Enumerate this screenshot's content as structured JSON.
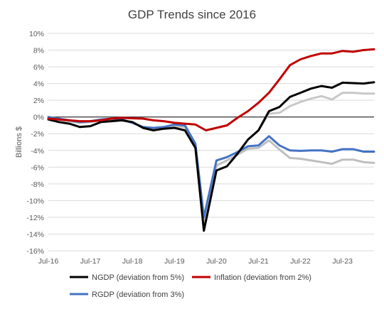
{
  "chart_data": {
    "type": "line",
    "title": "GDP Trends since 2016",
    "ylabel": "Billions $",
    "xlabel": "",
    "ylim": [
      -16,
      10
    ],
    "yticks": [
      -16,
      -14,
      -12,
      -10,
      -8,
      -6,
      -4,
      -2,
      0,
      2,
      4,
      6,
      8,
      10
    ],
    "ytick_labels": [
      "-16%",
      "-14%",
      "-12%",
      "-10%",
      "-8%",
      "-6%",
      "-4%",
      "-2%",
      "0%",
      "2%",
      "4%",
      "6%",
      "8%",
      "10%"
    ],
    "xlim": [
      0,
      31
    ],
    "xticks": [
      0,
      4,
      8,
      12,
      16,
      20,
      24,
      28
    ],
    "xtick_labels": [
      "Jul-16",
      "Jul-17",
      "Jul-18",
      "Jul-19",
      "Jul-20",
      "Jul-21",
      "Jul-22",
      "Jul-23"
    ],
    "grid": "horizontal",
    "legend": "bottom",
    "series": [
      {
        "name": "NGDP (deviation from 5%)",
        "color": "#000000",
        "values": [
          [
            0,
            -0.3
          ],
          [
            1,
            -0.6
          ],
          [
            2,
            -0.8
          ],
          [
            3,
            -1.2
          ],
          [
            4,
            -1.1
          ],
          [
            5,
            -0.6
          ],
          [
            6,
            -0.5
          ],
          [
            7,
            -0.4
          ],
          [
            8,
            -0.6
          ],
          [
            9,
            -1.3
          ],
          [
            10,
            -1.6
          ],
          [
            11,
            -1.4
          ],
          [
            12,
            -1.3
          ],
          [
            13,
            -1.6
          ],
          [
            14,
            -3.7
          ],
          [
            14.8,
            -13.6
          ],
          [
            16,
            -6.4
          ],
          [
            17,
            -5.9
          ],
          [
            18,
            -4.4
          ],
          [
            19,
            -2.7
          ],
          [
            20,
            -1.6
          ],
          [
            21,
            0.7
          ],
          [
            22,
            1.2
          ],
          [
            23,
            2.4
          ],
          [
            24,
            2.9
          ],
          [
            25,
            3.4
          ],
          [
            26,
            3.7
          ],
          [
            27,
            3.5
          ],
          [
            28,
            4.1
          ],
          [
            29,
            4.05
          ],
          [
            30,
            4.0
          ],
          [
            31,
            4.15
          ]
        ]
      },
      {
        "name": "Inflation (deviation from 2%)",
        "color": "#c00000",
        "values": [
          [
            0,
            -0.2
          ],
          [
            1,
            -0.3
          ],
          [
            2,
            -0.4
          ],
          [
            3,
            -0.5
          ],
          [
            4,
            -0.5
          ],
          [
            5,
            -0.4
          ],
          [
            6,
            -0.2
          ],
          [
            7,
            -0.1
          ],
          [
            8,
            -0.15
          ],
          [
            9,
            -0.2
          ],
          [
            10,
            -0.4
          ],
          [
            11,
            -0.5
          ],
          [
            12,
            -0.7
          ],
          [
            13,
            -0.8
          ],
          [
            14,
            -0.9
          ],
          [
            15,
            -1.6
          ],
          [
            16,
            -1.3
          ],
          [
            17,
            -1.0
          ],
          [
            18,
            -0.1
          ],
          [
            19,
            0.7
          ],
          [
            20,
            1.7
          ],
          [
            21,
            2.9
          ],
          [
            22,
            4.5
          ],
          [
            23,
            6.2
          ],
          [
            24,
            6.9
          ],
          [
            25,
            7.3
          ],
          [
            26,
            7.6
          ],
          [
            27,
            7.6
          ],
          [
            28,
            7.9
          ],
          [
            29,
            7.8
          ],
          [
            30,
            8.0
          ],
          [
            31,
            8.1
          ]
        ]
      },
      {
        "name": "RGDP (deviation from 3%)",
        "color": "#4472c4",
        "values": [
          [
            0,
            0.0
          ],
          [
            1,
            -0.2
          ],
          [
            2,
            -0.4
          ],
          [
            3,
            -0.6
          ],
          [
            4,
            -0.5
          ],
          [
            5,
            -0.3
          ],
          [
            6,
            -0.2
          ],
          [
            7,
            -0.3
          ],
          [
            8,
            -0.7
          ],
          [
            9,
            -1.2
          ],
          [
            10,
            -1.3
          ],
          [
            11,
            -1.2
          ],
          [
            12,
            -0.9
          ],
          [
            13,
            -1.0
          ],
          [
            14,
            -3.2
          ],
          [
            14.8,
            -12.0
          ],
          [
            16,
            -5.2
          ],
          [
            17,
            -4.8
          ],
          [
            18,
            -4.2
          ],
          [
            19,
            -3.5
          ],
          [
            20,
            -3.4
          ],
          [
            21,
            -2.3
          ],
          [
            22,
            -3.4
          ],
          [
            23,
            -4.0
          ],
          [
            24,
            -4.05
          ],
          [
            25,
            -4.0
          ],
          [
            26,
            -4.0
          ],
          [
            27,
            -4.15
          ],
          [
            28,
            -3.85
          ],
          [
            29,
            -3.85
          ],
          [
            30,
            -4.15
          ],
          [
            31,
            -4.15
          ]
        ]
      },
      {
        "name": "",
        "color": "#bfbfbf",
        "values": [
          [
            0,
            -0.1
          ],
          [
            1,
            -0.3
          ],
          [
            2,
            -0.5
          ],
          [
            3,
            -0.7
          ],
          [
            4,
            -0.6
          ],
          [
            5,
            -0.4
          ],
          [
            6,
            -0.3
          ],
          [
            7,
            -0.4
          ],
          [
            8,
            -0.7
          ],
          [
            9,
            -1.2
          ],
          [
            10,
            -1.4
          ],
          [
            11,
            -1.2
          ],
          [
            12,
            -1.1
          ],
          [
            13,
            -1.2
          ],
          [
            14,
            -3.4
          ],
          [
            14.8,
            -12.8
          ],
          [
            16,
            -5.8
          ],
          [
            17,
            -5.2
          ],
          [
            18,
            -4.5
          ],
          [
            19,
            -3.8
          ],
          [
            20,
            -3.7
          ],
          [
            21,
            -2.8
          ],
          [
            22,
            -3.9
          ],
          [
            23,
            -4.9
          ],
          [
            24,
            -5.0
          ],
          [
            25,
            -5.2
          ],
          [
            26,
            -5.4
          ],
          [
            27,
            -5.6
          ],
          [
            28,
            -5.1
          ],
          [
            29,
            -5.1
          ],
          [
            30,
            -5.4
          ],
          [
            31,
            -5.5
          ]
        ]
      },
      {
        "name": "",
        "color": "#c8c8c8",
        "values": [
          [
            20,
            -1.6
          ],
          [
            21,
            0.4
          ],
          [
            22,
            0.5
          ],
          [
            23,
            1.3
          ],
          [
            24,
            1.8
          ],
          [
            25,
            2.2
          ],
          [
            26,
            2.5
          ],
          [
            27,
            2.1
          ],
          [
            28,
            2.9
          ],
          [
            29,
            2.9
          ],
          [
            30,
            2.8
          ],
          [
            31,
            2.8
          ]
        ]
      }
    ]
  }
}
